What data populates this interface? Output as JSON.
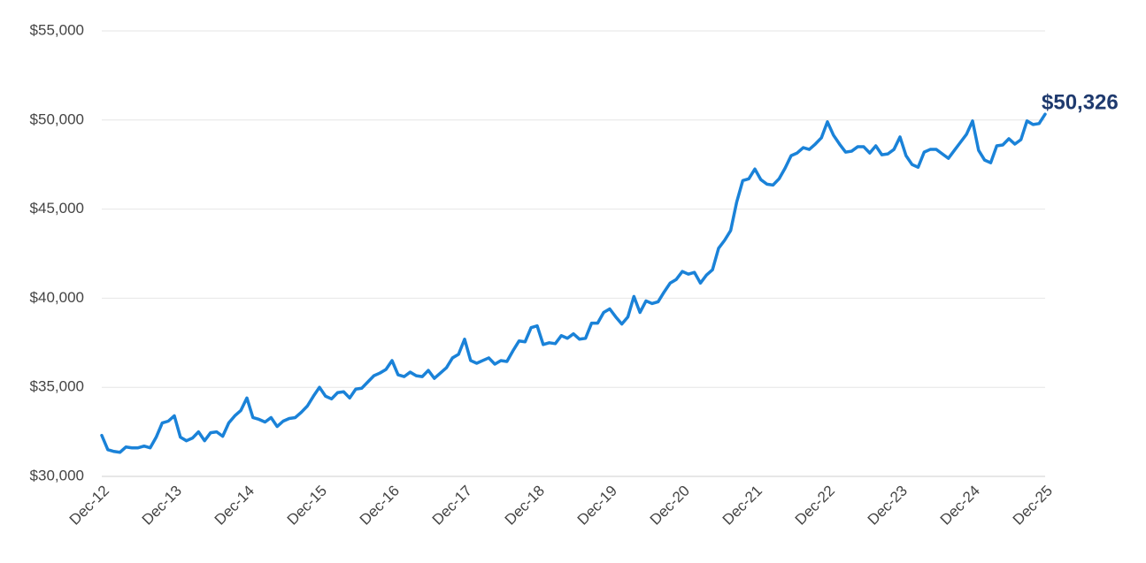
{
  "chart_data": {
    "type": "line",
    "categories": [
      "Dec-12",
      null,
      null,
      null,
      null,
      null,
      null,
      null,
      null,
      null,
      null,
      null,
      "Dec-13",
      null,
      null,
      null,
      null,
      null,
      null,
      null,
      null,
      null,
      null,
      null,
      "Dec-14",
      null,
      null,
      null,
      null,
      null,
      null,
      null,
      null,
      null,
      null,
      null,
      "Dec-15",
      null,
      null,
      null,
      null,
      null,
      null,
      null,
      null,
      null,
      null,
      null,
      "Dec-16",
      null,
      null,
      null,
      null,
      null,
      null,
      null,
      null,
      null,
      null,
      null,
      "Dec-17",
      null,
      null,
      null,
      null,
      null,
      null,
      null,
      null,
      null,
      null,
      null,
      "Dec-18",
      null,
      null,
      null,
      null,
      null,
      null,
      null,
      null,
      null,
      null,
      null,
      "Dec-19",
      null,
      null,
      null,
      null,
      null,
      null,
      null,
      null,
      null,
      null,
      null,
      "Dec-20",
      null,
      null,
      null,
      null,
      null,
      null,
      null,
      null,
      null,
      null,
      null,
      "Dec-21",
      null,
      null,
      null,
      null,
      null,
      null,
      null,
      null,
      null,
      null,
      null,
      "Dec-22",
      null,
      null,
      null,
      null,
      null,
      null,
      null,
      null,
      null,
      null,
      null,
      "Dec-23",
      null,
      null,
      null,
      null,
      null,
      null,
      null,
      null,
      null,
      null,
      null,
      "Dec-24",
      null,
      null,
      null,
      null,
      null,
      null,
      null,
      null,
      null,
      null,
      null,
      "Dec-25"
    ],
    "values": [
      32300,
      31500,
      31400,
      31350,
      31650,
      31600,
      31600,
      31700,
      31600,
      32200,
      33000,
      33100,
      33400,
      32200,
      32000,
      32150,
      32500,
      32000,
      32450,
      32500,
      32250,
      33000,
      33400,
      33700,
      34400,
      33300,
      33200,
      33050,
      33300,
      32800,
      33100,
      33250,
      33300,
      33600,
      33950,
      34500,
      35000,
      34500,
      34350,
      34700,
      34750,
      34400,
      34900,
      34950,
      35300,
      35650,
      35800,
      36000,
      36500,
      35700,
      35600,
      35850,
      35650,
      35600,
      35950,
      35500,
      35800,
      36100,
      36650,
      36850,
      37700,
      36500,
      36350,
      36500,
      36650,
      36300,
      36500,
      36450,
      37050,
      37600,
      37550,
      38350,
      38450,
      37400,
      37500,
      37450,
      37900,
      37750,
      38000,
      37700,
      37750,
      38600,
      38600,
      39200,
      39400,
      38950,
      38550,
      38950,
      40100,
      39200,
      39850,
      39700,
      39800,
      40350,
      40850,
      41050,
      41500,
      41350,
      41450,
      40850,
      41300,
      41600,
      42800,
      43250,
      43800,
      45400,
      46600,
      46700,
      47250,
      46650,
      46400,
      46350,
      46700,
      47300,
      48000,
      48150,
      48450,
      48350,
      48650,
      49000,
      49900,
      49150,
      48650,
      48200,
      48250,
      48500,
      48500,
      48150,
      48550,
      48050,
      48100,
      48350,
      49050,
      48000,
      47500,
      47350,
      48200,
      48350,
      48350,
      48100,
      47850,
      48300,
      48750,
      49200,
      49950,
      48300,
      47750,
      47600,
      48550,
      48600,
      48950,
      48650,
      48900,
      49950,
      49750,
      49800,
      50326
    ],
    "value_labels": [
      null,
      null,
      null,
      null,
      null,
      null,
      null,
      null,
      null,
      null,
      null,
      null,
      null,
      null,
      null,
      null,
      null,
      null,
      null,
      null,
      null,
      null,
      null,
      null,
      null,
      null,
      null,
      null,
      null,
      null,
      null,
      null,
      null,
      null,
      null,
      null,
      null,
      null,
      null,
      null,
      null,
      null,
      null,
      null,
      null,
      null,
      null,
      null,
      null,
      null,
      null,
      null,
      null,
      null,
      null,
      null,
      null,
      null,
      null,
      null,
      null,
      null,
      null,
      null,
      null,
      null,
      null,
      null,
      null,
      null,
      null,
      null,
      null,
      null,
      null,
      null,
      null,
      null,
      null,
      null,
      null,
      null,
      null,
      null,
      null,
      null,
      null,
      null,
      null,
      null,
      null,
      null,
      null,
      null,
      null,
      null,
      null,
      null,
      null,
      null,
      null,
      null,
      null,
      null,
      null,
      null,
      null,
      null,
      null,
      null,
      null,
      null,
      null,
      null,
      null,
      null,
      null,
      null,
      null,
      null,
      null,
      null,
      null,
      null,
      null,
      null,
      null,
      null,
      null,
      null,
      null,
      null,
      null,
      null,
      null,
      null,
      null,
      null,
      null,
      null,
      null,
      null,
      null,
      null,
      null,
      null,
      null,
      null,
      null,
      null,
      null,
      null,
      null,
      null,
      null,
      null,
      "$50,326"
    ],
    "color": "#1a82d8",
    "label_color": "#1f3a6e",
    "ylim": [
      30000,
      55000
    ],
    "yticks": [
      {
        "value": 30000,
        "label": "$30,000"
      },
      {
        "value": 35000,
        "label": "$35,000"
      },
      {
        "value": 40000,
        "label": "$40,000"
      },
      {
        "value": 45000,
        "label": "$45,000"
      },
      {
        "value": 50000,
        "label": "$50,000"
      },
      {
        "value": 55000,
        "label": "$55,000"
      }
    ],
    "grid": true
  }
}
